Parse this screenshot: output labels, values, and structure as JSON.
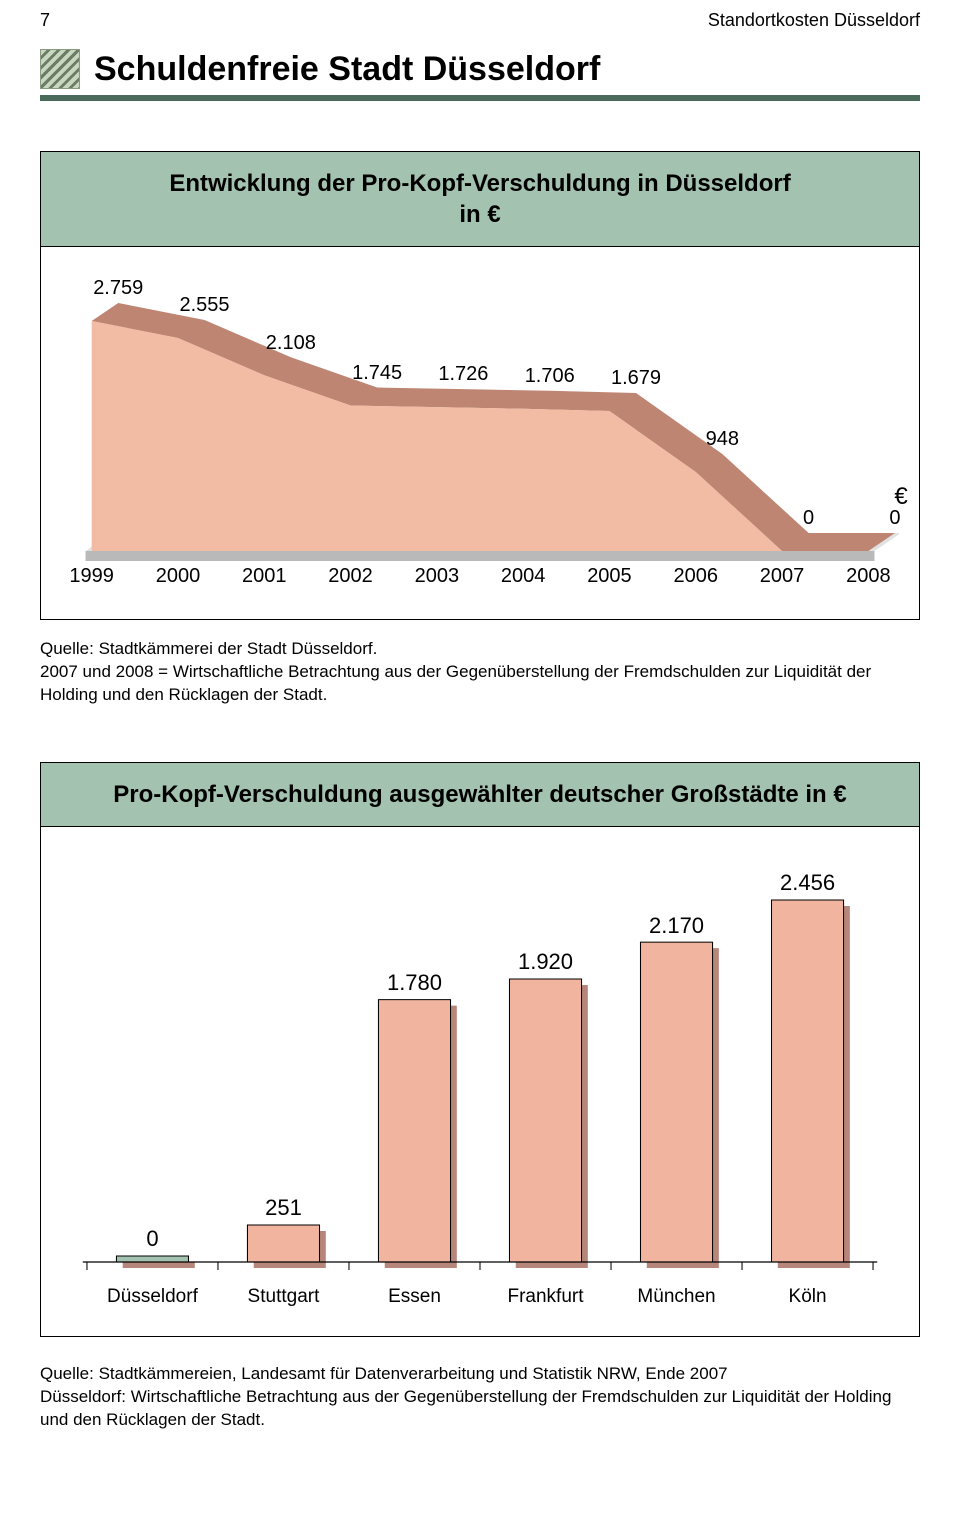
{
  "header": {
    "page_number": "7",
    "page_label": "Standortkosten Düsseldorf",
    "title": "Schuldenfreie Stadt Düsseldorf",
    "rule_color": "#4a6b5c"
  },
  "area_chart": {
    "title_line1": "Entwicklung der Pro-Kopf-Verschuldung in Düsseldorf",
    "title_line2": "in €",
    "title_bg": "#a3c2b0",
    "years": [
      "1999",
      "2000",
      "2001",
      "2002",
      "2003",
      "2004",
      "2005",
      "2006",
      "2007",
      "2008"
    ],
    "values": [
      2759,
      2555,
      2108,
      1745,
      1726,
      1706,
      1679,
      948,
      0,
      0
    ],
    "value_labels": [
      "2.759",
      "2.555",
      "2.108",
      "1.745",
      "1.726",
      "1.706",
      "1.679",
      "948",
      "0",
      "0"
    ],
    "currency_symbol": "€",
    "fill_front": "#f1bba4",
    "fill_top": "#be8572",
    "fill_side": "#cb927f",
    "base_light": "#e2e2e2",
    "base_dark": "#b9b9b9"
  },
  "source1": {
    "line1": "Quelle: Stadtkämmerei der Stadt Düsseldorf.",
    "line2": "2007 und 2008 = Wirtschaftliche Betrachtung aus der Gegenüberstellung der Fremdschulden zur Liquidität der Holding und den Rücklagen der Stadt."
  },
  "bar_chart": {
    "title": "Pro-Kopf-Verschuldung ausgewählter deutscher Großstädte in €",
    "title_bg": "#a3c2b0",
    "categories": [
      "Düsseldorf",
      "Stuttgart",
      "Essen",
      "Frankfurt",
      "München",
      "Köln"
    ],
    "values": [
      0,
      251,
      1780,
      1920,
      2170,
      2456
    ],
    "value_labels": [
      "0",
      "251",
      "1.780",
      "1.920",
      "2.170",
      "2.456"
    ],
    "bar_fill": "#f1b49e",
    "bar_shadow": "#b7867a",
    "highlight_fill": "#a3c2b0",
    "axis_color": "#000000",
    "ymax": 2456,
    "label_fontsize": 22
  },
  "source2": {
    "line1": "Quelle: Stadtkämmereien, Landesamt für Datenverarbeitung und Statistik NRW, Ende 2007",
    "line2": "Düsseldorf: Wirtschaftliche Betrachtung aus der Gegenüberstellung der Fremdschulden zur Liquidität der Holding und den Rücklagen der Stadt."
  }
}
